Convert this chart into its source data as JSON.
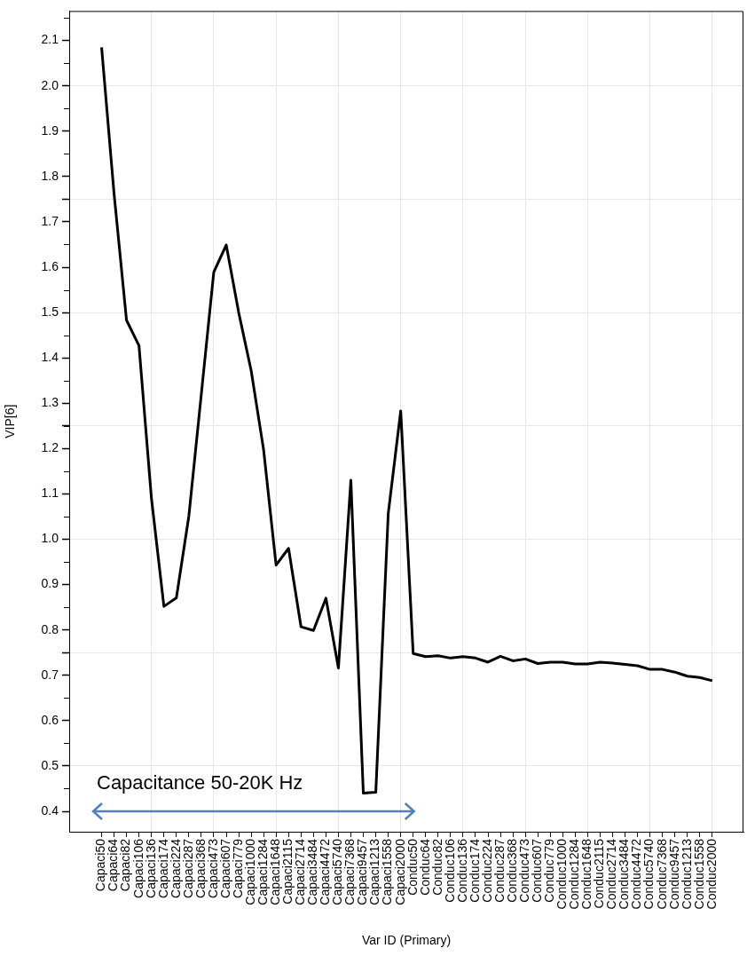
{
  "chart_data": {
    "type": "line",
    "xlabel": "Var ID (Primary)",
    "ylabel": "VIP[6]",
    "categories": [
      "Capaci50",
      "Capaci64",
      "Capaci82",
      "Capaci106",
      "Capaci136",
      "Capaci174",
      "Capaci224",
      "Capaci287",
      "Capaci368",
      "Capaci473",
      "Capaci607",
      "Capaci779",
      "Capaci1000",
      "Capaci1284",
      "Capaci1648",
      "Capaci2115",
      "Capaci2714",
      "Capaci3484",
      "Capaci4472",
      "Capaci5740",
      "Capaci7368",
      "Capaci9457",
      "Capaci1213",
      "Capaci1558",
      "Capaci2000",
      "Conduc50",
      "Conduc64",
      "Conduc82",
      "Conduc106",
      "Conduc136",
      "Conduc174",
      "Conduc224",
      "Conduc287",
      "Conduc368",
      "Conduc473",
      "Conduc607",
      "Conduc779",
      "Conduc1000",
      "Conduc1284",
      "Conduc1648",
      "Conduc2115",
      "Conduc2714",
      "Conduc3484",
      "Conduc4472",
      "Conduc5740",
      "Conduc7368",
      "Conduc9457",
      "Conduc1213",
      "Conduc1558",
      "Conduc2000"
    ],
    "values": [
      2.085,
      1.762,
      1.483,
      1.427,
      1.09,
      0.852,
      0.871,
      1.051,
      1.32,
      1.589,
      1.649,
      1.5,
      1.372,
      1.197,
      0.943,
      0.98,
      0.807,
      0.799,
      0.87,
      0.716,
      1.13,
      0.44,
      0.442,
      1.057,
      1.283,
      0.748,
      0.741,
      0.743,
      0.738,
      0.741,
      0.738,
      0.729,
      0.742,
      0.732,
      0.736,
      0.726,
      0.729,
      0.729,
      0.725,
      0.725,
      0.729,
      0.727,
      0.724,
      0.721,
      0.713,
      0.713,
      0.707,
      0.698,
      0.695,
      0.688
    ],
    "color": "#000000",
    "marker": "none",
    "line_style": "solid",
    "grid": true,
    "ylim": [
      0.355,
      2.165
    ],
    "yticks": [
      0.4,
      0.5,
      0.6,
      0.7,
      {
        "value": 0.75,
        "label": null
      },
      0.8,
      0.9,
      {
        "value": 1.0,
        "label": "1.0"
      },
      1.1,
      1.2,
      {
        "value": 1.25,
        "label": null
      },
      1.3,
      1.4,
      1.5,
      1.6,
      1.7,
      {
        "value": 1.75,
        "label": null
      },
      1.8,
      1.9,
      {
        "value": 2.0,
        "label": "2.0"
      },
      2.1
    ],
    "annotations": [
      "Capacitance 50-20K Hz"
    ]
  }
}
